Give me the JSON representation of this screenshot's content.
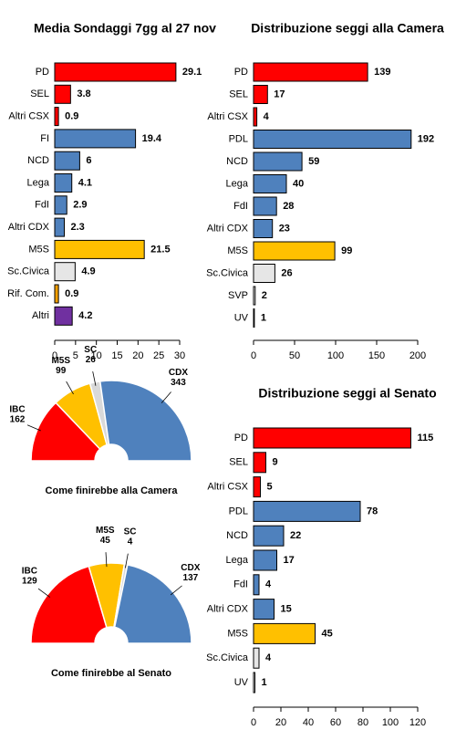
{
  "chart_data": [
    {
      "type": "bar",
      "title": "Media Sondaggi 7gg al 27 nov",
      "categories": [
        "PD",
        "SEL",
        "Altri CSX",
        "FI",
        "NCD",
        "Lega",
        "FdI",
        "Altri CDX",
        "M5S",
        "Sc.Civica",
        "Rif. Com.",
        "Altri"
      ],
      "values": [
        29.1,
        3.8,
        0.9,
        19.4,
        6,
        4.1,
        2.9,
        2.3,
        21.5,
        4.9,
        0.9,
        4.2
      ],
      "colors": [
        "#ff0000",
        "#ff0000",
        "#ff0000",
        "#4f81bd",
        "#4f81bd",
        "#4f81bd",
        "#4f81bd",
        "#4f81bd",
        "#ffc000",
        "#e6e6e6",
        "#f5a000",
        "#7030a0"
      ],
      "xlim": [
        0,
        30
      ],
      "xticks": [
        0,
        5,
        10,
        15,
        20,
        25,
        30
      ]
    },
    {
      "type": "bar",
      "title": "Distribuzione seggi alla Camera",
      "categories": [
        "PD",
        "SEL",
        "Altri CSX",
        "PDL",
        "NCD",
        "Lega",
        "FdI",
        "Altri CDX",
        "M5S",
        "Sc.Civica",
        "SVP",
        "UV"
      ],
      "values": [
        139,
        17,
        4,
        192,
        59,
        40,
        28,
        23,
        99,
        26,
        2,
        1
      ],
      "colors": [
        "#ff0000",
        "#ff0000",
        "#ff0000",
        "#4f81bd",
        "#4f81bd",
        "#4f81bd",
        "#4f81bd",
        "#4f81bd",
        "#ffc000",
        "#e6e6e6",
        "#ffffff",
        "#ffffff"
      ],
      "xlim": [
        0,
        200
      ],
      "xticks": [
        0,
        50,
        100,
        150,
        200
      ]
    },
    {
      "type": "bar",
      "title": "Distribuzione seggi al Senato",
      "categories": [
        "PD",
        "SEL",
        "Altri CSX",
        "PDL",
        "NCD",
        "Lega",
        "FdI",
        "Altri CDX",
        "M5S",
        "Sc.Civica",
        "UV"
      ],
      "values": [
        115,
        9,
        5,
        78,
        22,
        17,
        4,
        15,
        45,
        4,
        1
      ],
      "colors": [
        "#ff0000",
        "#ff0000",
        "#ff0000",
        "#4f81bd",
        "#4f81bd",
        "#4f81bd",
        "#4f81bd",
        "#4f81bd",
        "#ffc000",
        "#e6e6e6",
        "#ffffff"
      ],
      "xlim": [
        0,
        120
      ],
      "xticks": [
        0,
        20,
        40,
        60,
        80,
        100,
        120
      ]
    },
    {
      "type": "halfpie",
      "title": "Come finirebbe alla Camera",
      "categories": [
        "IBC",
        "M5S",
        "SC",
        "CDX"
      ],
      "values": [
        162,
        99,
        26,
        343
      ],
      "colors": [
        "#ff0000",
        "#ffc000",
        "#d9d9d9",
        "#4f81bd"
      ]
    },
    {
      "type": "halfpie",
      "title": "Come finirebbe al Senato",
      "categories": [
        "IBC",
        "M5S",
        "SC",
        "CDX"
      ],
      "values": [
        129,
        45,
        4,
        137
      ],
      "colors": [
        "#ff0000",
        "#ffc000",
        "#d9d9d9",
        "#4f81bd"
      ]
    }
  ]
}
